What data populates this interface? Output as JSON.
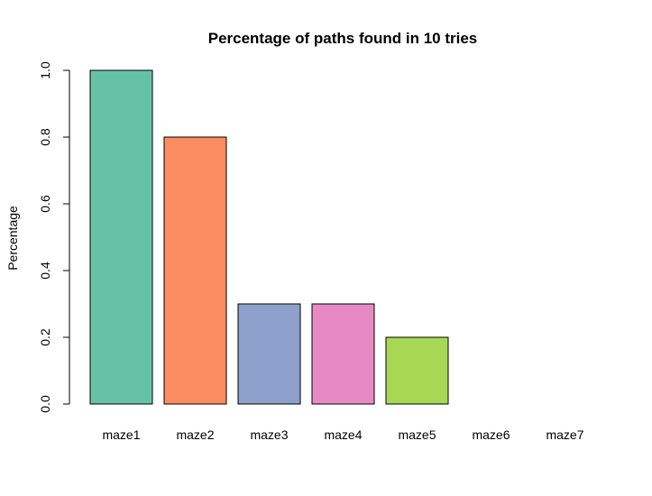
{
  "chart_data": {
    "type": "bar",
    "title": "Percentage of paths found in 10 tries",
    "xlabel": "",
    "ylabel": "Percentage",
    "categories": [
      "maze1",
      "maze2",
      "maze3",
      "maze4",
      "maze5",
      "maze6",
      "maze7"
    ],
    "values": [
      1.0,
      0.8,
      0.3,
      0.3,
      0.2,
      0.0,
      0.0
    ],
    "colors": [
      "#66C2A5",
      "#FC8D62",
      "#8DA0CB",
      "#E78AC3",
      "#A6D854",
      "#FFD92F",
      "#E5C494"
    ],
    "ylim": [
      0,
      1
    ],
    "yticks": [
      "0.0",
      "0.2",
      "0.4",
      "0.6",
      "0.8",
      "1.0"
    ],
    "grid": false,
    "legend": "none"
  }
}
